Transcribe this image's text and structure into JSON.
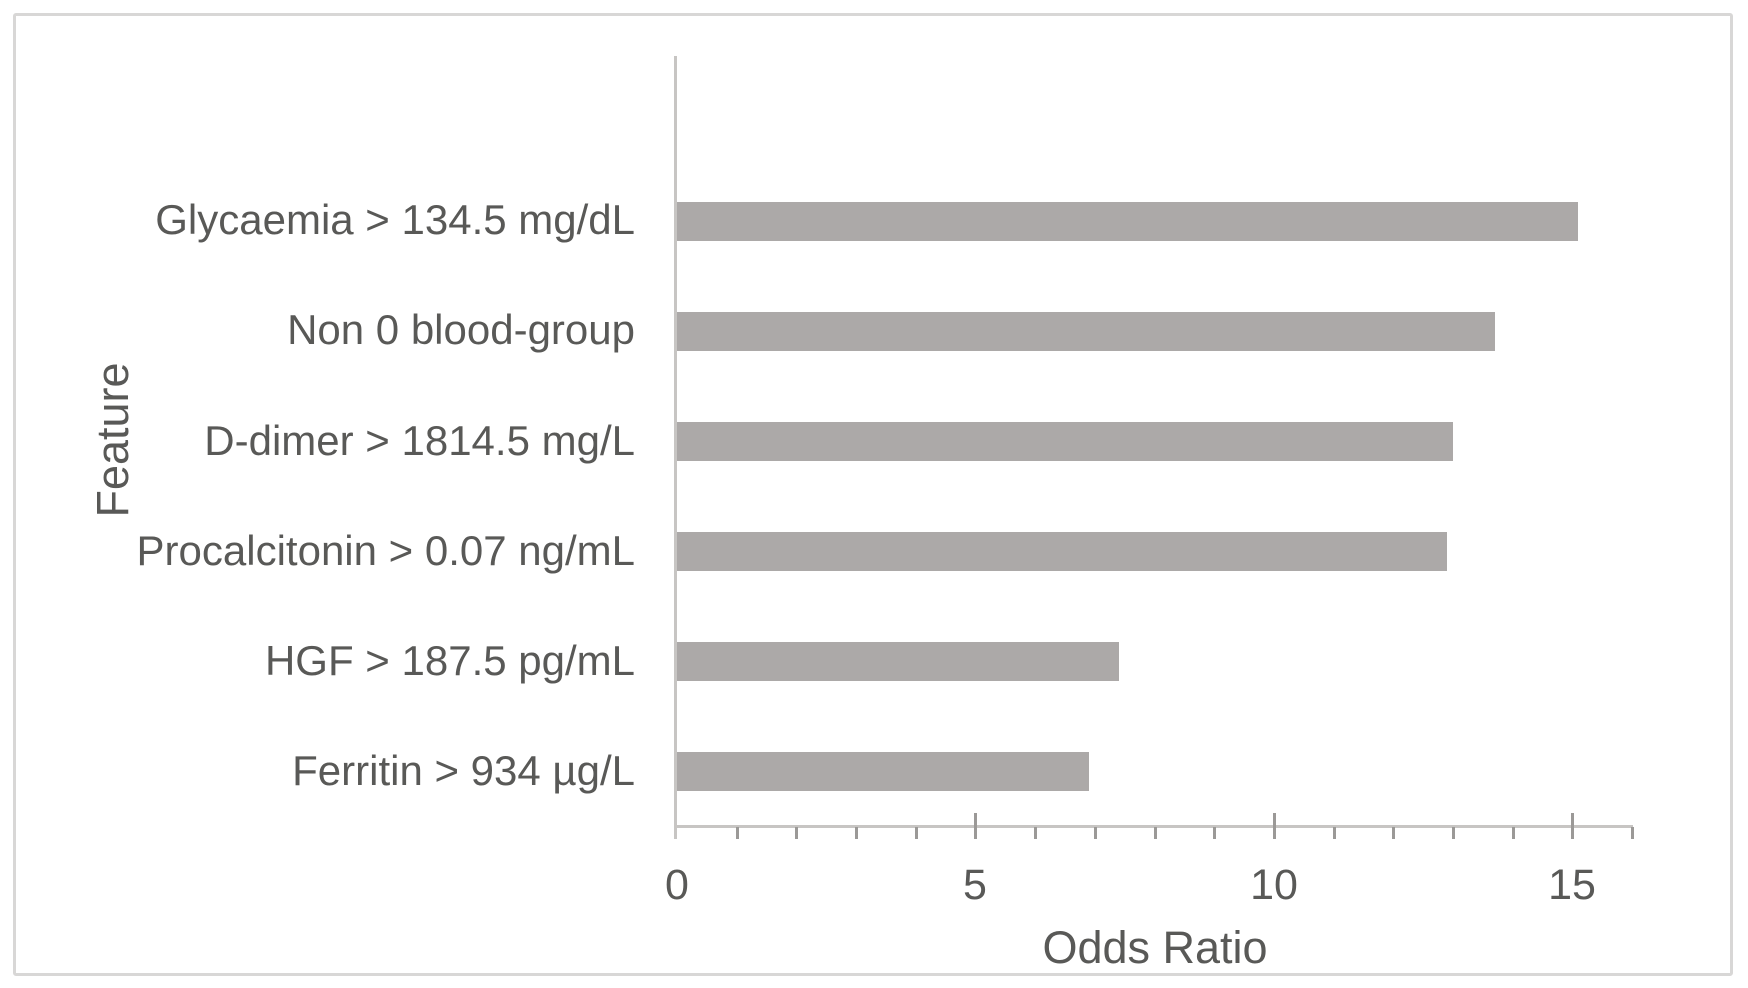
{
  "figure": {
    "background_color": "#ffffff",
    "border_color": "#d8d7d6"
  },
  "chart_data": {
    "type": "bar",
    "orientation": "horizontal",
    "title": "",
    "xlabel": "Odds Ratio",
    "ylabel": "Feature",
    "categories": [
      "Glycaemia > 134.5 mg/dL",
      "Non 0 blood-group",
      "D-dimer > 1814.5 mg/L",
      "Procalcitonin > 0.07 ng/mL",
      "HGF > 187.5 pg/mL",
      "Ferritin > 934 µg/L"
    ],
    "values": [
      15.1,
      13.7,
      13.0,
      12.9,
      7.4,
      6.9
    ],
    "xlim": [
      0,
      16
    ],
    "xticks": [
      0,
      5,
      10,
      15
    ],
    "minor_tick_step": 1,
    "grid": false,
    "legend": false,
    "bar_color": "#aca9a8",
    "axis_line_color": "#c7c5c3",
    "tick_mark_color": "#9b9997",
    "text_color": "#595957"
  }
}
